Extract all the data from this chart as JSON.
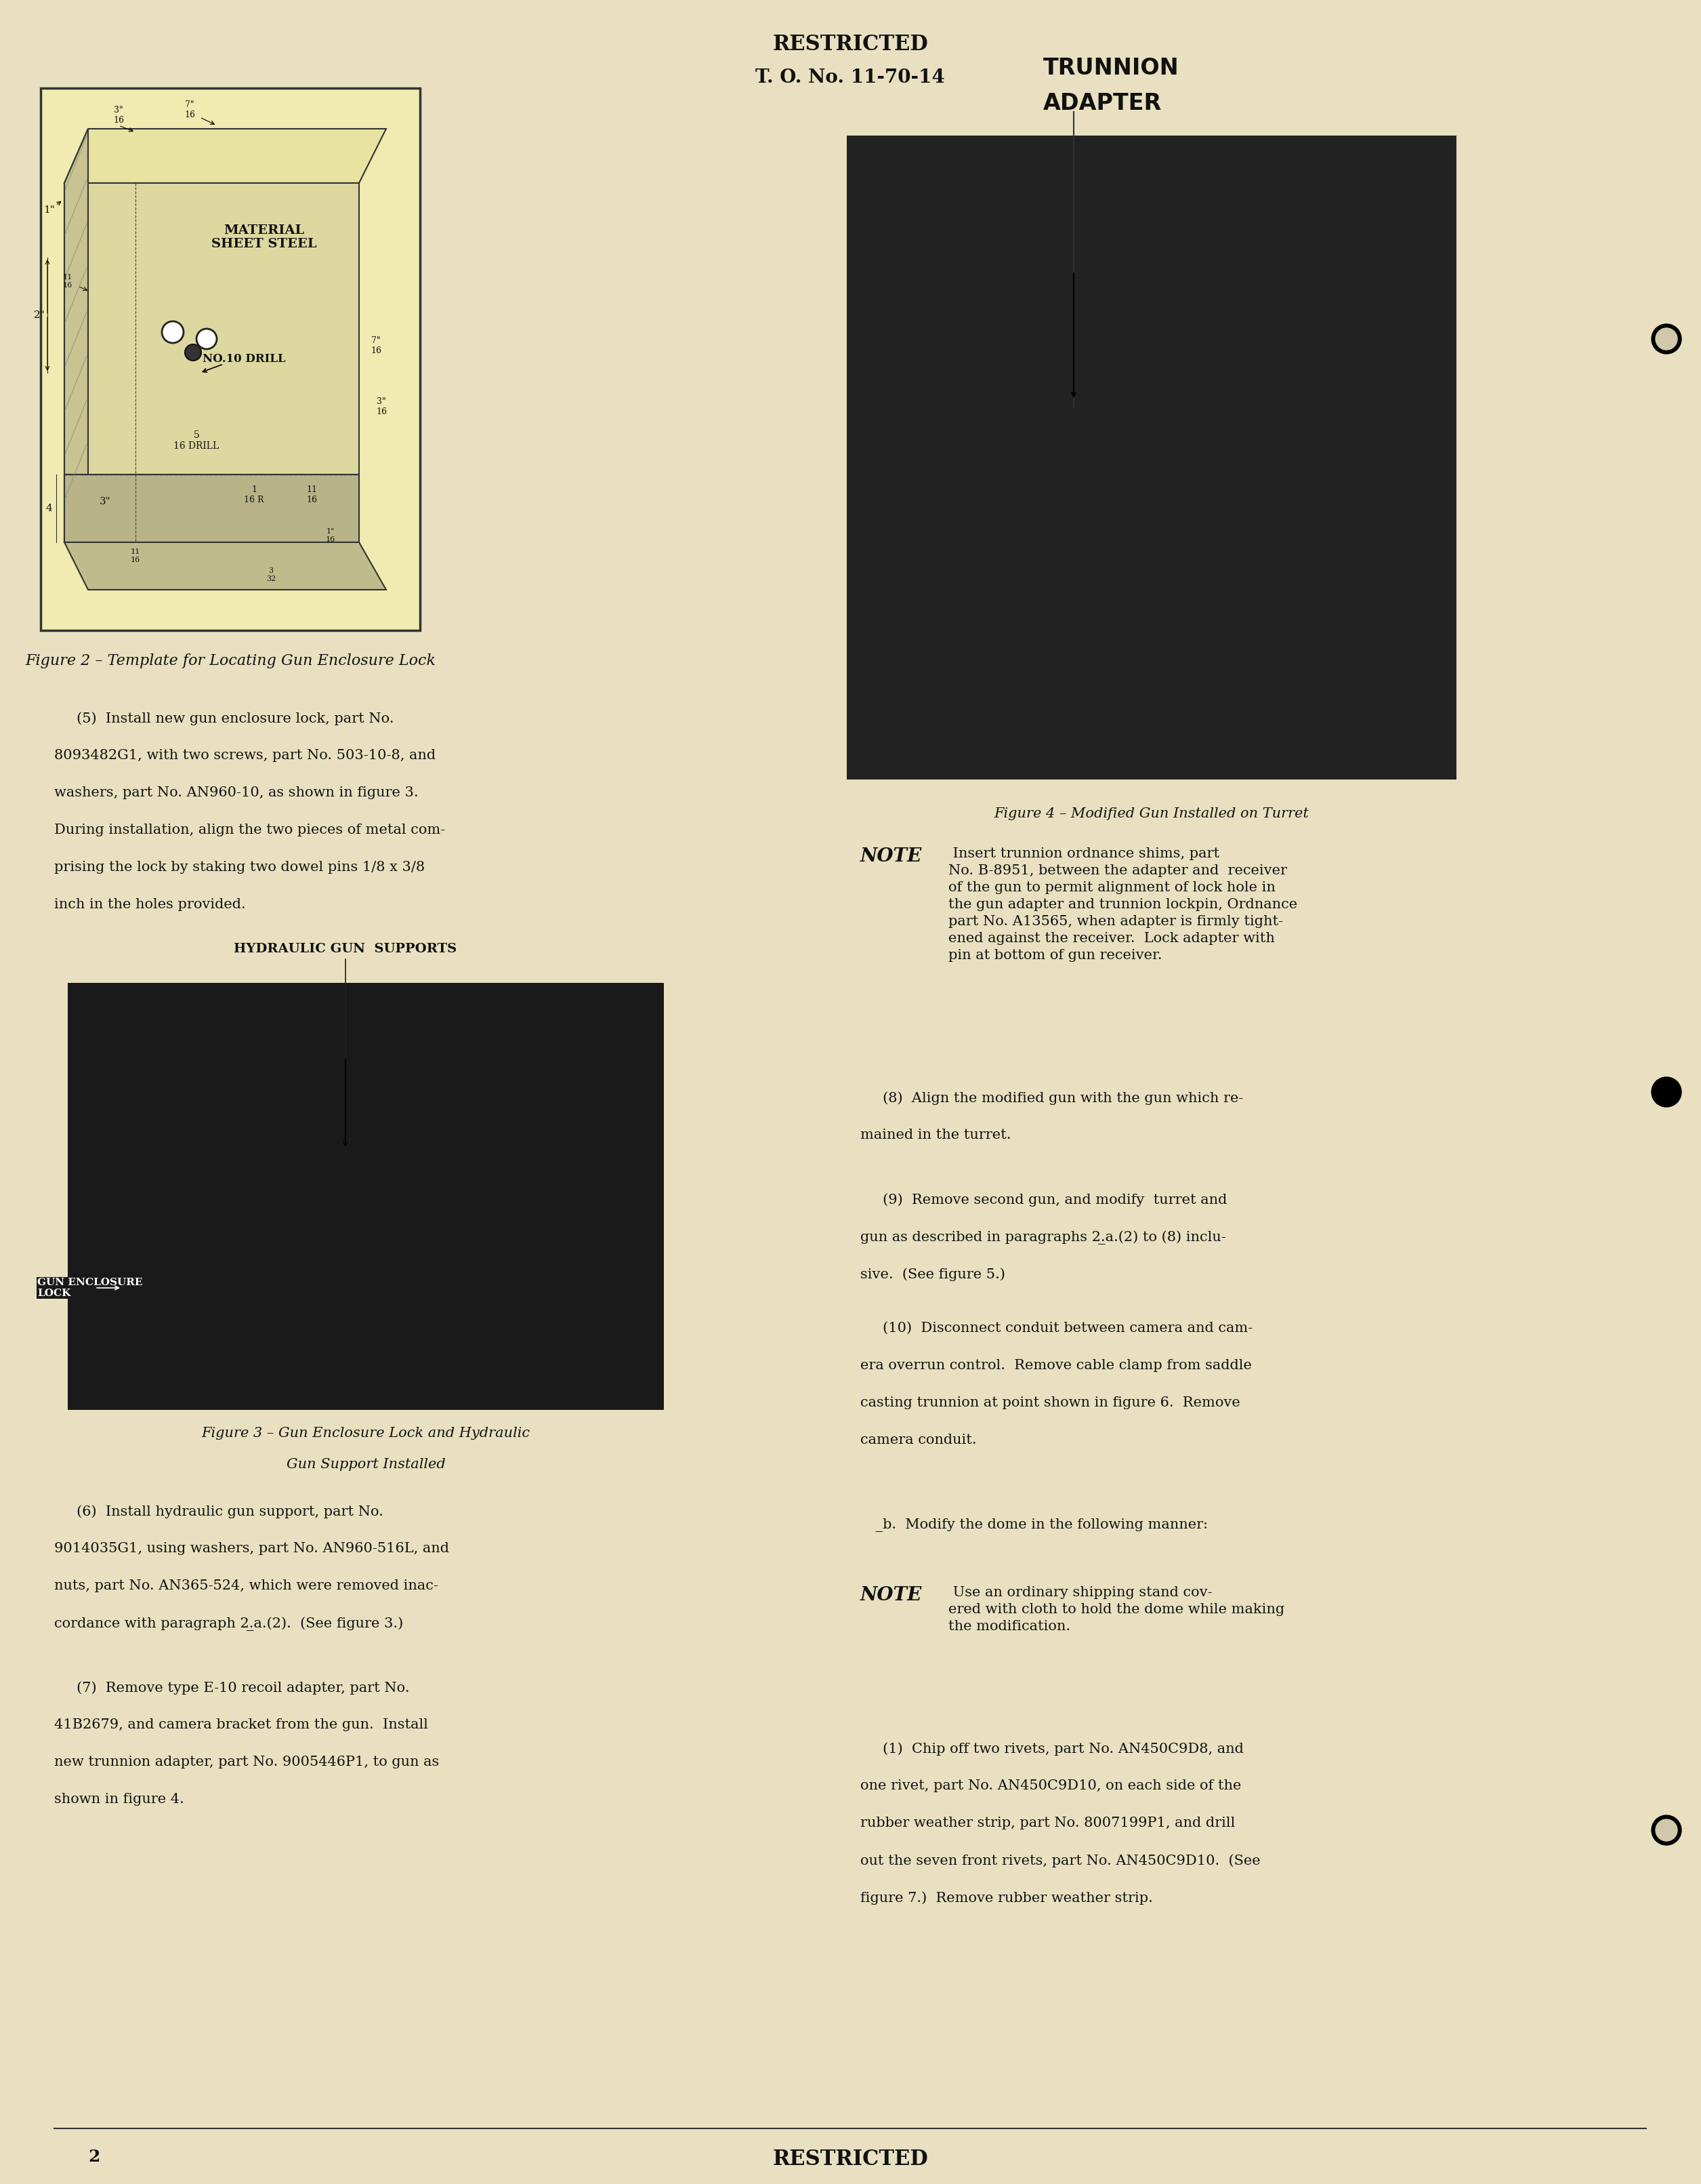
{
  "bg_color": "#e8e0c0",
  "page_color": "#e8e0c0",
  "text_color": "#111111",
  "header_text_line1": "RESTRICTED",
  "header_text_line2": "T. O. No. 11-70-14",
  "footer_text_center": "RESTRICTED",
  "footer_page_num": "2",
  "fig2_caption": "Figure 2 – Template for Locating Gun Enclosure Lock",
  "fig3_caption_line1": "Figure 3 – Gun Enclosure Lock and Hydraulic",
  "fig3_caption_line2": "Gun Support Installed",
  "fig4_caption": "Figure 4 – Modified Gun Installed on Turret",
  "fig4_label_trunnion": "TRUNNION\nADAPTER",
  "fig3_label_hydraulic": "HYDRAULIC GUN  SUPPORTS",
  "fig3_label_lock": "GUN ENCLOSURE\nLOCK",
  "note_bold": "NOTE"
}
